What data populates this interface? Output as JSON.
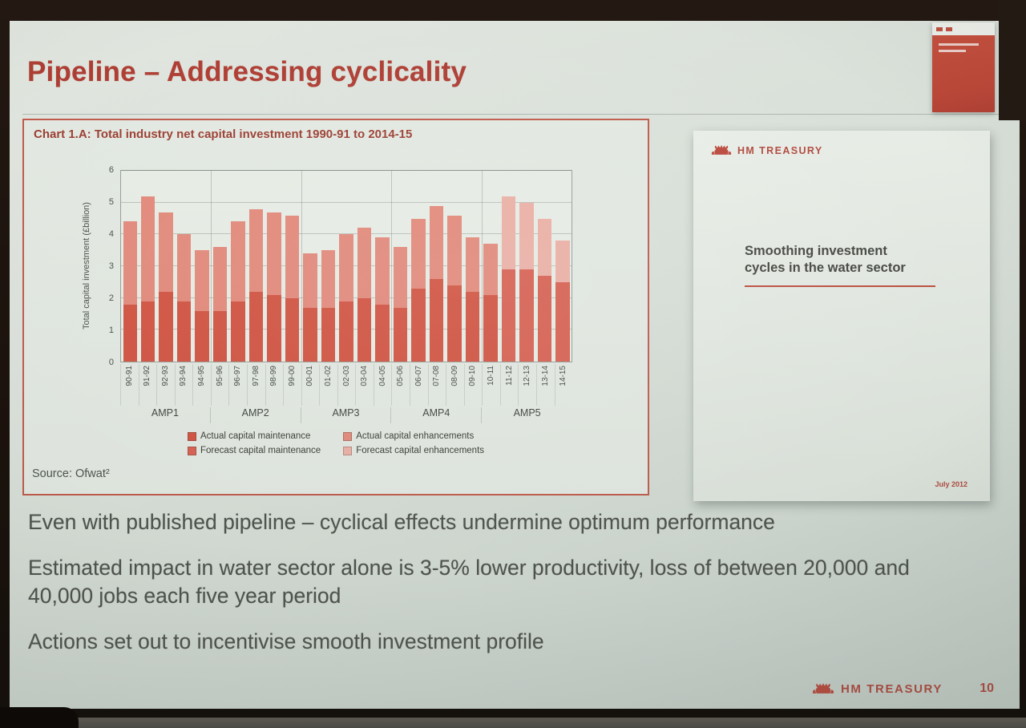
{
  "slide": {
    "title": "Pipeline – Addressing cyclicality",
    "bullets": [
      "Even with published pipeline – cyclical effects undermine optimum performance",
      "Estimated impact in water sector alone is 3-5% lower productivity, loss of between 20,000 and 40,000 jobs each five year period",
      "Actions set out to incentivise smooth investment profile"
    ],
    "footer_brand": "HM TREASURY",
    "page_number": "10"
  },
  "chart_panel": {
    "heading": "Chart 1.A: Total industry net capital investment 1990-91 to 2014-15",
    "source": "Source: Ofwat²"
  },
  "report_cover": {
    "brand": "HM TREASURY",
    "title": "Smoothing investment\ncycles in the water sector",
    "date": "July 2012"
  },
  "colors": {
    "accent_red": "#b23a30",
    "panel_border": "#c4584a"
  },
  "chart_data": {
    "type": "bar",
    "stacked": true,
    "title": "Chart 1.A: Total industry net capital investment 1990-91 to 2014-15",
    "xlabel": "",
    "ylabel": "Total capital investment (£billion)",
    "ylim": [
      0,
      6
    ],
    "yticks": [
      0,
      1,
      2,
      3,
      4,
      5,
      6
    ],
    "grid": true,
    "legend_position": "bottom",
    "categories": [
      "90-91",
      "91-92",
      "92-93",
      "93-94",
      "94-95",
      "95-96",
      "96-97",
      "97-98",
      "98-99",
      "99-00",
      "00-01",
      "01-02",
      "02-03",
      "03-04",
      "04-05",
      "05-06",
      "06-07",
      "07-08",
      "08-09",
      "09-10",
      "10-11",
      "11-12",
      "12-13",
      "13-14",
      "14-15"
    ],
    "groups": [
      {
        "label": "AMP1",
        "span": 5
      },
      {
        "label": "AMP2",
        "span": 5
      },
      {
        "label": "AMP3",
        "span": 5
      },
      {
        "label": "AMP4",
        "span": 5
      },
      {
        "label": "AMP5",
        "span": 5
      }
    ],
    "series": [
      {
        "name": "Actual capital maintenance",
        "color": "#d7503e",
        "values": [
          1.8,
          1.9,
          2.2,
          1.9,
          1.6,
          1.6,
          1.9,
          2.2,
          2.1,
          2.0,
          1.7,
          1.7,
          1.9,
          2.0,
          1.8,
          1.7,
          2.3,
          2.6,
          2.4,
          2.2,
          2.1,
          0,
          0,
          0,
          0
        ]
      },
      {
        "name": "Forecast capital maintenance",
        "color": "#dd5f50",
        "values": [
          0,
          0,
          0,
          0,
          0,
          0,
          0,
          0,
          0,
          0,
          0,
          0,
          0,
          0,
          0,
          0,
          0,
          0,
          0,
          0,
          0,
          2.9,
          2.9,
          2.7,
          2.5
        ]
      },
      {
        "name": "Actual capital enhancements",
        "color": "#e98a7b",
        "values": [
          2.6,
          3.3,
          2.5,
          2.1,
          1.9,
          2.0,
          2.5,
          2.6,
          2.6,
          2.6,
          1.7,
          1.8,
          2.1,
          2.2,
          2.1,
          1.9,
          2.2,
          2.3,
          2.2,
          1.7,
          1.6,
          0,
          0,
          0,
          0
        ]
      },
      {
        "name": "Forecast capital enhancements",
        "color": "#f2b3a9",
        "values": [
          0,
          0,
          0,
          0,
          0,
          0,
          0,
          0,
          0,
          0,
          0,
          0,
          0,
          0,
          0,
          0,
          0,
          0,
          0,
          0,
          0,
          2.3,
          2.1,
          1.8,
          1.3
        ]
      }
    ],
    "legend": [
      {
        "label": "Actual capital maintenance",
        "color": "#d7503e"
      },
      {
        "label": "Actual capital enhancements",
        "color": "#e98a7b"
      },
      {
        "label": "Forecast capital maintenance",
        "color": "#dd5f50"
      },
      {
        "label": "Forecast capital enhancements",
        "color": "#f2b3a9"
      }
    ]
  }
}
